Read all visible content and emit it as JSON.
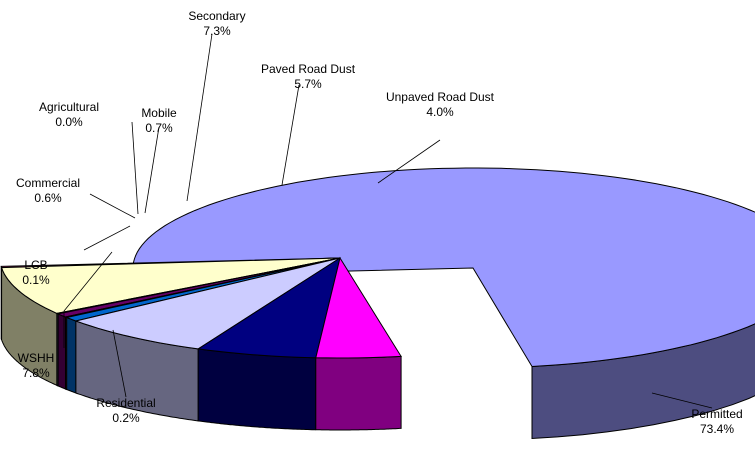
{
  "chart_data": {
    "type": "pie",
    "title": "",
    "style": "3d-exploded",
    "legend": "none",
    "slices": [
      {
        "name": "Permitted",
        "value": 73.4,
        "label": "73.4%",
        "color": "#9999ff",
        "side": "#4d4d80"
      },
      {
        "name": "Residential",
        "value": 0.2,
        "label": "0.2%",
        "color": "#993366",
        "side": "#4d1a33"
      },
      {
        "name": "WSHH",
        "value": 7.8,
        "label": "7.8%",
        "color": "#ffffcc",
        "side": "#808066"
      },
      {
        "name": "LCB",
        "value": 0.1,
        "label": "0.1%",
        "color": "#ccffff",
        "side": "#668080"
      },
      {
        "name": "Commercial",
        "value": 0.6,
        "label": "0.6%",
        "color": "#660066",
        "side": "#330033"
      },
      {
        "name": "Agricultural",
        "value": 0.0,
        "label": "0.0%",
        "color": "#ff8080",
        "side": "#804040"
      },
      {
        "name": "Mobile",
        "value": 0.7,
        "label": "0.7%",
        "color": "#0066cc",
        "side": "#003366"
      },
      {
        "name": "Secondary",
        "value": 7.3,
        "label": "7.3%",
        "color": "#ccccff",
        "side": "#666680"
      },
      {
        "name": "Paved Road Dust",
        "value": 5.7,
        "label": "5.7%",
        "color": "#000080",
        "side": "#000040"
      },
      {
        "name": "Unpaved Road Dust",
        "value": 4.0,
        "label": "4.0%",
        "color": "#ff00ff",
        "side": "#800080"
      }
    ]
  }
}
